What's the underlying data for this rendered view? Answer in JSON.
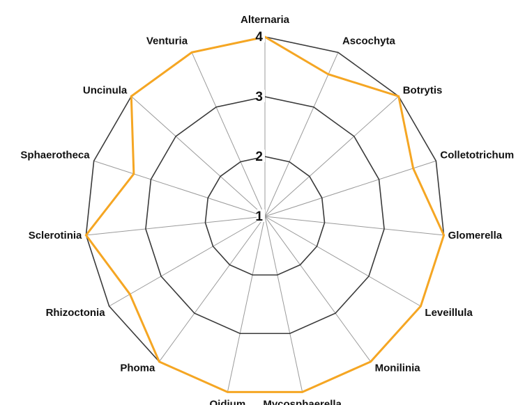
{
  "chart_data": {
    "type": "radar",
    "categories": [
      "Alternaria",
      "Ascochyta",
      "Botrytis",
      "Colletotrichum",
      "Glomerella",
      "Leveillula",
      "Monilinia",
      "Mycosphaerella",
      "Oidium",
      "Phoma",
      "Rhizoctonia",
      "Sclerotinia",
      "Sphaerotheca",
      "Uncinula",
      "Venturia"
    ],
    "series": [
      {
        "values": [
          4,
          3.6,
          4,
          3.6,
          4,
          4,
          4,
          4,
          4,
          4,
          3.6,
          4,
          3.3,
          4,
          4
        ]
      }
    ],
    "rlim": [
      1,
      4
    ],
    "ticks": [
      1,
      2,
      3,
      4
    ],
    "tick_labels": [
      "1",
      "2",
      "3",
      "4"
    ],
    "grid": true,
    "legend": "none",
    "colors": {
      "series": "#f5a623",
      "grid": "#3a3a3a",
      "spokes": "#9a9a9a"
    }
  }
}
